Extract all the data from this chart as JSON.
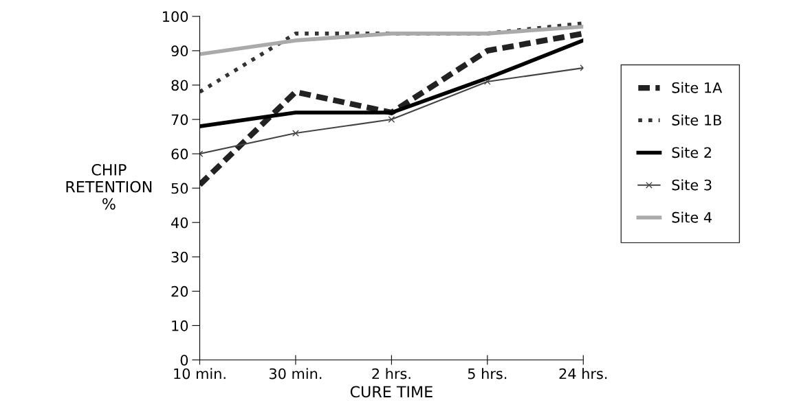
{
  "chart_data": {
    "type": "line",
    "xlabel": "CURE TIME",
    "ylabel": "CHIP\nRETENTION\n%",
    "categories": [
      "10 min.",
      "30 min.",
      "2 hrs.",
      "5 hrs.",
      "24 hrs."
    ],
    "ylim": [
      0,
      100
    ],
    "yticks": [
      0,
      10,
      20,
      30,
      40,
      50,
      60,
      70,
      80,
      90,
      100
    ],
    "grid": false,
    "legend": "right",
    "series": [
      {
        "name": "Site 1A",
        "color": "#222222",
        "line_style": "dashed",
        "values": [
          51,
          78,
          72,
          90,
          95
        ]
      },
      {
        "name": "Site 1B",
        "color": "#333333",
        "line_style": "dotted",
        "values": [
          78,
          95,
          95,
          95,
          98
        ]
      },
      {
        "name": "Site 2",
        "color": "#000000",
        "line_style": "solid",
        "values": [
          68,
          72,
          72,
          82,
          93
        ]
      },
      {
        "name": "Site 3",
        "color": "#444444",
        "line_style": "solid",
        "marker": "cross",
        "values": [
          60,
          66,
          70,
          81,
          85
        ]
      },
      {
        "name": "Site 4",
        "color": "#aaaaaa",
        "line_style": "solid",
        "values": [
          89,
          93,
          95,
          95,
          97
        ]
      }
    ]
  }
}
